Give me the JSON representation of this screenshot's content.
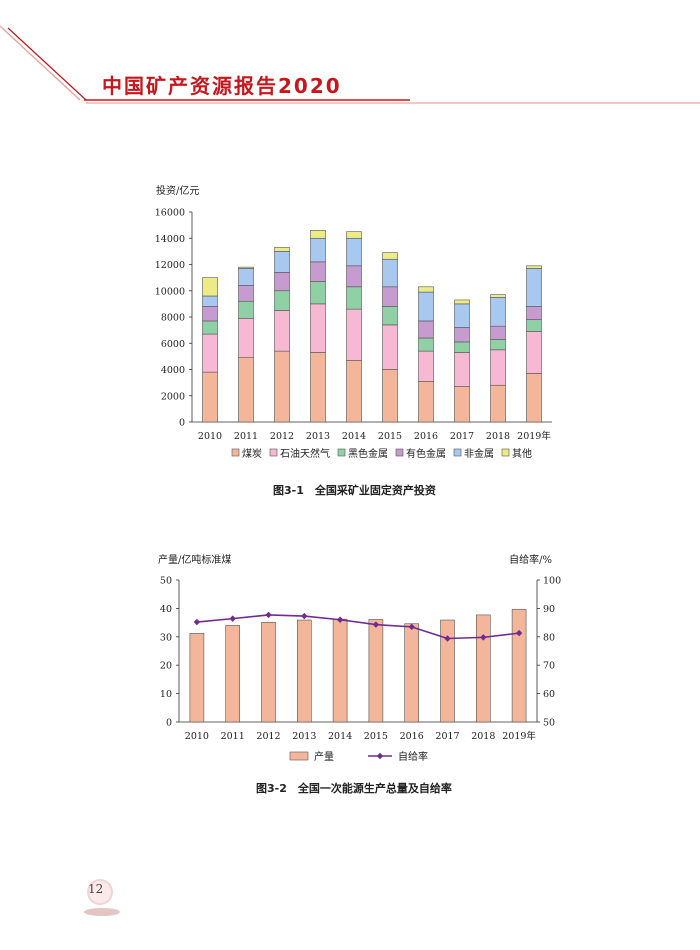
{
  "header": {
    "title": "中国矿产资源报告2020"
  },
  "page_number": "12",
  "colors": {
    "brand_red": "#c8161d"
  },
  "chart_data": [
    {
      "type": "bar",
      "stacked": true,
      "caption": "图3-1　全国采矿业固定资产投资",
      "ylabel": "投资/亿元",
      "xlabel": "",
      "ylim": [
        0,
        16000
      ],
      "yticks": [
        "0",
        "2000",
        "4000",
        "6000",
        "8000",
        "10000",
        "12000",
        "14000",
        "16000"
      ],
      "categories": [
        "2010",
        "2011",
        "2012",
        "2013",
        "2014",
        "2015",
        "2016",
        "2017",
        "2018",
        "2019年"
      ],
      "legend_position": "bottom",
      "series": [
        {
          "name": "煤炭",
          "color": "#f4b69a",
          "values": [
            3800,
            4900,
            5400,
            5300,
            4700,
            4000,
            3100,
            2700,
            2800,
            3700
          ]
        },
        {
          "name": "石油天然气",
          "color": "#f6b8d2",
          "values": [
            2900,
            3000,
            3100,
            3700,
            3900,
            3400,
            2300,
            2600,
            2700,
            3200
          ]
        },
        {
          "name": "黑色金属",
          "color": "#8fd1a4",
          "values": [
            1000,
            1300,
            1500,
            1700,
            1700,
            1400,
            1000,
            800,
            800,
            900
          ]
        },
        {
          "name": "有色金属",
          "color": "#c69bd0",
          "values": [
            1100,
            1200,
            1400,
            1500,
            1600,
            1500,
            1300,
            1100,
            1000,
            1000
          ]
        },
        {
          "name": "非金属",
          "color": "#a9c8ef",
          "values": [
            800,
            1300,
            1600,
            1800,
            2100,
            2100,
            2200,
            1800,
            2200,
            2900
          ]
        },
        {
          "name": "其他",
          "color": "#eceb85",
          "values": [
            1400,
            100,
            300,
            600,
            500,
            500,
            400,
            300,
            200,
            200
          ]
        }
      ]
    },
    {
      "type": "bar",
      "caption": "图3-2　全国一次能源生产总量及自给率",
      "ylabel": "产量/亿吨标准煤",
      "y2label": "自给率/%",
      "ylim": [
        0,
        50
      ],
      "y2lim": [
        50,
        100
      ],
      "yticks": [
        "0",
        "10",
        "20",
        "30",
        "40",
        "50"
      ],
      "y2ticks": [
        "50",
        "60",
        "70",
        "80",
        "90",
        "100"
      ],
      "categories": [
        "2010",
        "2011",
        "2012",
        "2013",
        "2014",
        "2015",
        "2016",
        "2017",
        "2018",
        "2019年"
      ],
      "legend_position": "bottom",
      "series": [
        {
          "name": "产量",
          "type": "bar",
          "axis": "left",
          "color": "#f4b69a",
          "values": [
            31.2,
            34.0,
            35.1,
            35.9,
            36.2,
            36.1,
            34.6,
            35.9,
            37.7,
            39.7
          ]
        },
        {
          "name": "自给率",
          "type": "line",
          "axis": "right",
          "color": "#6f2c91",
          "values": [
            85.2,
            86.4,
            87.7,
            87.3,
            86.0,
            84.3,
            83.5,
            79.4,
            79.8,
            81.3
          ]
        }
      ]
    }
  ]
}
